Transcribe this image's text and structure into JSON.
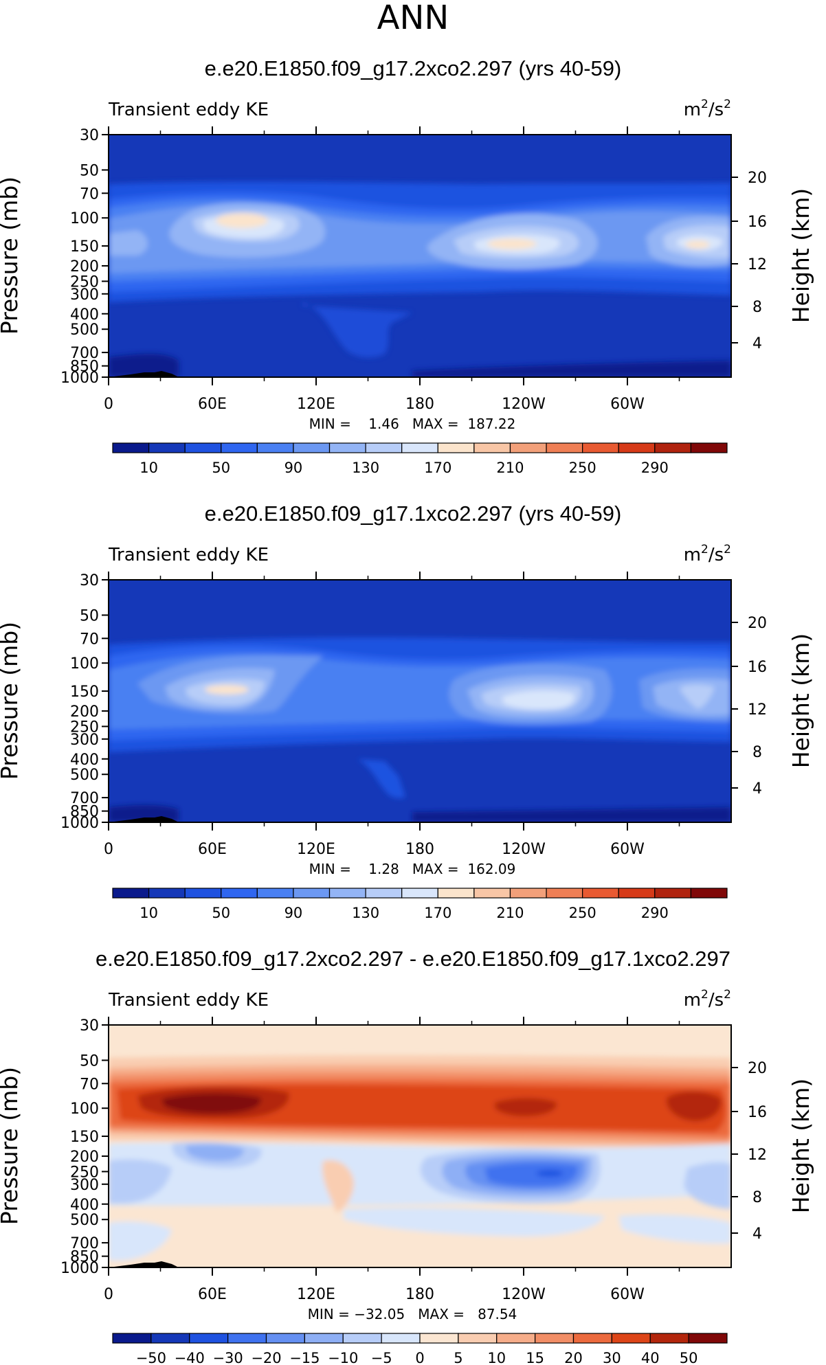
{
  "page_title": "ANN",
  "chart_data": [
    {
      "type": "heatmap",
      "title": "e.e20.E1850.f09_g17.2xco2.297 (yrs 40-59)",
      "left_string": "Transient eddy KE",
      "units_base": "m",
      "units_exp1": "2",
      "units_mid": "/s",
      "units_exp2": "2",
      "ylabel": "Pressure (mb)",
      "y2label": "Height (km)",
      "y_ticks": [
        "30",
        "50",
        "70",
        "100",
        "150",
        "200",
        "250",
        "300",
        "400",
        "500",
        "700",
        "850",
        "1000"
      ],
      "y2_ticks": [
        "20",
        "16",
        "12",
        "8",
        "4"
      ],
      "x_ticks": [
        "0",
        "60E",
        "120E",
        "180",
        "120W",
        "60W"
      ],
      "stats": "MIN =    1.46   MAX =  187.22",
      "colorbar_labels": [
        "10",
        "50",
        "90",
        "130",
        "170",
        "210",
        "250",
        "290"
      ],
      "min": 1.46,
      "max": 187.22
    },
    {
      "type": "heatmap",
      "title": "e.e20.E1850.f09_g17.1xco2.297 (yrs 40-59)",
      "left_string": "Transient eddy KE",
      "units_base": "m",
      "units_exp1": "2",
      "units_mid": "/s",
      "units_exp2": "2",
      "ylabel": "Pressure (mb)",
      "y2label": "Height (km)",
      "y_ticks": [
        "30",
        "50",
        "70",
        "100",
        "150",
        "200",
        "250",
        "300",
        "400",
        "500",
        "700",
        "850",
        "1000"
      ],
      "y2_ticks": [
        "20",
        "16",
        "12",
        "8",
        "4"
      ],
      "x_ticks": [
        "0",
        "60E",
        "120E",
        "180",
        "120W",
        "60W"
      ],
      "stats": "MIN =    1.28   MAX =  162.09",
      "colorbar_labels": [
        "10",
        "50",
        "90",
        "130",
        "170",
        "210",
        "250",
        "290"
      ],
      "min": 1.28,
      "max": 162.09
    },
    {
      "type": "heatmap",
      "title": "e.e20.E1850.f09_g17.2xco2.297 - e.e20.E1850.f09_g17.1xco2.297",
      "left_string": "Transient eddy KE",
      "units_base": "m",
      "units_exp1": "2",
      "units_mid": "/s",
      "units_exp2": "2",
      "ylabel": "Pressure (mb)",
      "y2label": "Height (km)",
      "y_ticks": [
        "30",
        "50",
        "70",
        "100",
        "150",
        "200",
        "250",
        "300",
        "400",
        "500",
        "700",
        "850",
        "1000"
      ],
      "y2_ticks": [
        "20",
        "16",
        "12",
        "8",
        "4"
      ],
      "x_ticks": [
        "0",
        "60E",
        "120E",
        "180",
        "120W",
        "60W"
      ],
      "stats": "MIN = −32.05   MAX =   87.54",
      "colorbar_labels": [
        "−50",
        "−40",
        "−30",
        "−20",
        "−15",
        "−10",
        "−5",
        "0",
        "5",
        "10",
        "15",
        "20",
        "30",
        "40",
        "50"
      ],
      "min": -32.05,
      "max": 87.54
    }
  ],
  "palettes": {
    "abs": [
      "#0a1a8c",
      "#1538b8",
      "#1f52e0",
      "#2f66f0",
      "#4a80f2",
      "#6c98f2",
      "#93b4f5",
      "#b7cdf8",
      "#d9e6fb",
      "#fbe4cc",
      "#f8c6a6",
      "#f2a07a",
      "#ef7f55",
      "#e85a32",
      "#d63a18",
      "#b0230e",
      "#800808"
    ],
    "diff": [
      "#0a1a8c",
      "#1538b8",
      "#1f52e0",
      "#3f72ef",
      "#6590f2",
      "#8eaff5",
      "#b7cdf8",
      "#d8e6fb",
      "#fbe6d2",
      "#f9cdb1",
      "#f6ad8a",
      "#f28e66",
      "#ec6a3e",
      "#dd4518",
      "#b3260c",
      "#800808"
    ]
  }
}
